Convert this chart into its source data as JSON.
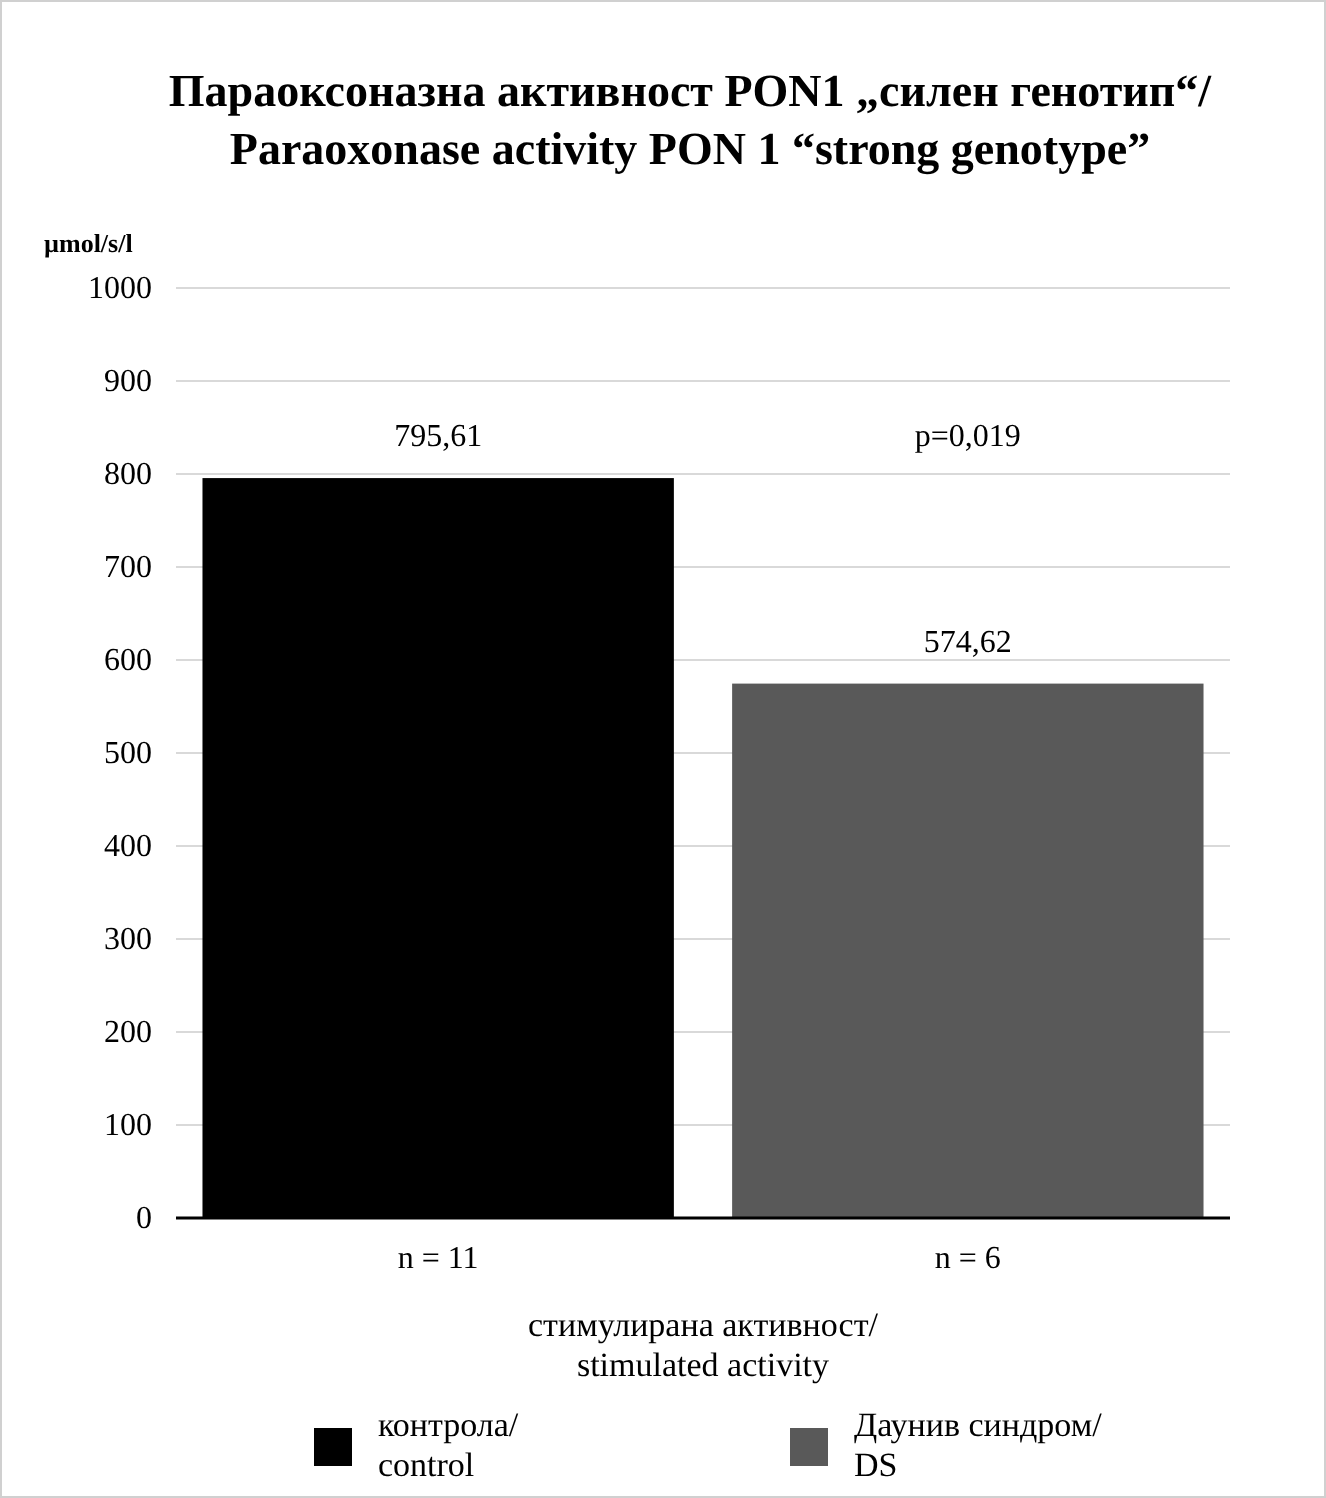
{
  "chart_data": {
    "type": "bar",
    "title": "Параоксоназна активност PON1 „силен генотип“/\nParaoxonase activity PON 1 “strong genotype”",
    "ylabel": "µmol/s/l",
    "xlabel": "стимулирана активност/\nstimulated activity",
    "categories": [
      "n = 11",
      "n = 6"
    ],
    "series": [
      {
        "name": "контрола/\ncontrol",
        "color": "#000000",
        "values": [
          795.61,
          null
        ],
        "value_labels": [
          "795,61",
          null
        ]
      },
      {
        "name": "Даунив синдром/\nDS",
        "color": "#595959",
        "values": [
          null,
          574.62
        ],
        "value_labels": [
          null,
          "574,62"
        ]
      }
    ],
    "annotations": [
      "p=0,019"
    ],
    "ylim": [
      0,
      1000
    ],
    "yticks": [
      0,
      100,
      200,
      300,
      400,
      500,
      600,
      700,
      800,
      900,
      1000
    ],
    "grid": "y",
    "legend": "bottom"
  }
}
